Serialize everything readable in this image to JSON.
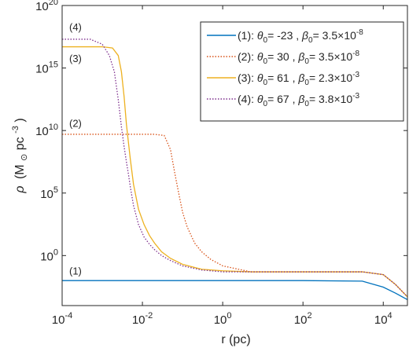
{
  "chart_data": {
    "type": "line",
    "xlabel": "r (pc)",
    "xscale": "log",
    "yscale": "log",
    "xlim": [
      0.0001,
      40000
    ],
    "ylim": [
      0.0001,
      1e+20
    ],
    "grid": false,
    "legend_position": "top-right",
    "x_ticks": [
      {
        "base": "10",
        "exp": "-4"
      },
      {
        "base": "10",
        "exp": "-2"
      },
      {
        "base": "10",
        "exp": "0"
      },
      {
        "base": "10",
        "exp": "2"
      },
      {
        "base": "10",
        "exp": "4"
      }
    ],
    "y_ticks": [
      {
        "base": "10",
        "exp": "0"
      },
      {
        "base": "10",
        "exp": "5"
      },
      {
        "base": "10",
        "exp": "10"
      },
      {
        "base": "10",
        "exp": "15"
      },
      {
        "base": "10",
        "exp": "20"
      }
    ],
    "ylabel": {
      "rho": "ρ",
      "open": "(M",
      "sun": "⊙",
      "mid": "pc",
      "sup": "-3",
      "close": ")"
    },
    "series": [
      {
        "name": "(1)",
        "color": "#0072BD",
        "style": "solid",
        "theta0": "-23",
        "beta0_mant": "3.5",
        "beta0_exp": "-8",
        "x": [
          0.0001,
          0.01,
          1,
          100,
          3000,
          10000,
          20000,
          40000
        ],
        "y": [
          0.01,
          0.01,
          0.01,
          0.01,
          0.009,
          0.003,
          0.001,
          0.0003
        ]
      },
      {
        "name": "(2)",
        "color": "#D95319",
        "style": "dotted",
        "theta0": "30",
        "beta0_mant": "3.5",
        "beta0_exp": "-8",
        "x": [
          0.0001,
          0.02,
          0.035,
          0.05,
          0.065,
          0.08,
          0.1,
          0.13,
          0.2,
          0.3,
          0.5,
          1,
          5,
          100,
          3000,
          10000,
          20000,
          40000
        ],
        "y": [
          5000000000.0,
          5000000000.0,
          4000000000.0,
          300000000.0,
          3000000.0,
          100000.0,
          3000.0,
          200,
          10,
          2,
          0.5,
          0.15,
          0.05,
          0.05,
          0.05,
          0.03,
          0.005,
          0.0005
        ]
      },
      {
        "name": "(3)",
        "color": "#EDB120",
        "style": "solid",
        "theta0": "61",
        "beta0_mant": "2.3",
        "beta0_exp": "-3",
        "x": [
          0.0001,
          0.001,
          0.0018,
          0.0025,
          0.003,
          0.0035,
          0.004,
          0.0045,
          0.005,
          0.006,
          0.008,
          0.011,
          0.015,
          0.02,
          0.03,
          0.05,
          0.1,
          0.3,
          1,
          5,
          100,
          3000,
          10000,
          20000,
          40000
        ],
        "y": [
          5e+16,
          5e+16,
          4e+16,
          1e+16,
          500000000000000.0,
          5000000000000.0,
          30000000000.0,
          1000000000.0,
          50000000.0,
          500000.0,
          5000.0,
          300,
          40,
          10,
          2,
          0.6,
          0.2,
          0.08,
          0.06,
          0.05,
          0.05,
          0.05,
          0.03,
          0.005,
          0.0005
        ]
      },
      {
        "name": "(4)",
        "color": "#7E2F8E",
        "style": "dotted",
        "theta0": "67",
        "beta0_mant": "3.8",
        "beta0_exp": "-3",
        "x": [
          0.0001,
          0.0005,
          0.001,
          0.0015,
          0.002,
          0.0025,
          0.003,
          0.0035,
          0.004,
          0.0045,
          0.005,
          0.006,
          0.008,
          0.011,
          0.015,
          0.02,
          0.03,
          0.05,
          0.1,
          0.3,
          1,
          5,
          100,
          3000,
          10000,
          20000,
          40000
        ],
        "y": [
          2e+17,
          2e+17,
          8e+16,
          1e+16,
          500000000000000.0,
          3000000000000.0,
          20000000000.0,
          500000000.0,
          30000000.0,
          3000000.0,
          300000.0,
          10000.0,
          300,
          30,
          8,
          3,
          1,
          0.4,
          0.15,
          0.07,
          0.05,
          0.05,
          0.05,
          0.05,
          0.03,
          0.005,
          0.0005
        ]
      }
    ],
    "annotations": [
      {
        "text": "(4)",
        "x": 0.00015,
        "y": 1e+18
      },
      {
        "text": "(3)",
        "x": 0.00015,
        "y": 3000000000000000.0
      },
      {
        "text": "(2)",
        "x": 0.00015,
        "y": 20000000000.0
      },
      {
        "text": "(1)",
        "x": 0.00015,
        "y": 0.03
      }
    ]
  }
}
